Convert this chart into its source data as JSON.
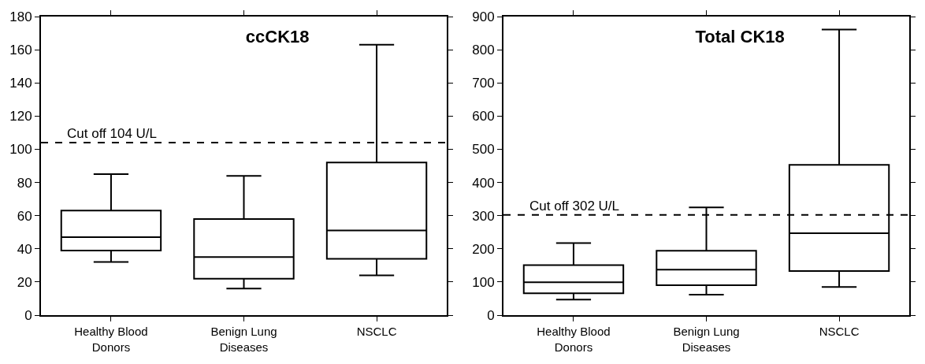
{
  "chart_data": [
    {
      "type": "box",
      "title": "ccCK18",
      "categories": [
        "Healthy Blood Donors",
        "Benign Lung Diseases",
        "NSCLC"
      ],
      "boxes": [
        {
          "low": 32,
          "q1": 39,
          "median": 47,
          "q3": 63,
          "high": 85
        },
        {
          "low": 16,
          "q1": 22,
          "median": 35,
          "q3": 58,
          "high": 84
        },
        {
          "low": 24,
          "q1": 34,
          "median": 51,
          "q3": 92,
          "high": 163
        }
      ],
      "ylim": [
        0,
        180
      ],
      "yticks": [
        0,
        20,
        40,
        60,
        80,
        100,
        120,
        140,
        160,
        180
      ],
      "grid": false,
      "legend": false,
      "ref_lines": [
        {
          "axis": "y",
          "value": 104,
          "label": "Cut off 104 U/L",
          "line_style": "dashed",
          "color": "#000000"
        }
      ]
    },
    {
      "type": "box",
      "title": "Total CK18",
      "categories": [
        "Healthy Blood Donors",
        "Benign Lung Diseases",
        "NSCLC"
      ],
      "boxes": [
        {
          "low": 47,
          "q1": 66,
          "median": 99,
          "q3": 151,
          "high": 217
        },
        {
          "low": 62,
          "q1": 90,
          "median": 137,
          "q3": 194,
          "high": 325
        },
        {
          "low": 85,
          "q1": 133,
          "median": 247,
          "q3": 453,
          "high": 861
        }
      ],
      "ylim": [
        0,
        900
      ],
      "yticks": [
        0,
        100,
        200,
        300,
        400,
        500,
        600,
        700,
        800,
        900
      ],
      "grid": false,
      "legend": false,
      "ref_lines": [
        {
          "axis": "y",
          "value": 302,
          "label": "Cut off 302 U/L",
          "line_style": "dashed",
          "color": "#000000"
        }
      ]
    }
  ]
}
